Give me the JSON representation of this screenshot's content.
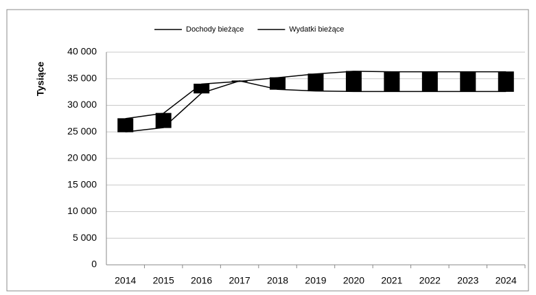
{
  "chart_data": {
    "type": "line",
    "ylabel": "Tysiące",
    "categories": [
      "2014",
      "2015",
      "2016",
      "2017",
      "2018",
      "2019",
      "2020",
      "2021",
      "2022",
      "2023",
      "2024"
    ],
    "series": [
      {
        "name": "Dochody bieżące",
        "color": "#000000",
        "values": [
          27500,
          28500,
          34000,
          34500,
          35200,
          35900,
          36400,
          36300,
          36300,
          36300,
          36300
        ]
      },
      {
        "name": "Wydatki bieżące",
        "color": "#000000",
        "values": [
          25000,
          25800,
          32300,
          34600,
          33000,
          32700,
          32600,
          32600,
          32600,
          32600,
          32600
        ]
      }
    ],
    "up_down_bars": true,
    "ylim": [
      0,
      40000
    ],
    "yticks": [
      0,
      {
        "value": 5000,
        "label": "5 000"
      },
      {
        "value": 10000,
        "label": "10 000"
      },
      {
        "value": 15000,
        "label": "15 000"
      },
      {
        "value": 20000,
        "label": "20 000"
      },
      {
        "value": 25000,
        "label": "25 000"
      },
      {
        "value": 30000,
        "label": "30 000"
      },
      {
        "value": 35000,
        "label": "35 000"
      },
      {
        "value": 40000,
        "label": "40 000"
      }
    ],
    "grid": true,
    "legend": "top"
  }
}
